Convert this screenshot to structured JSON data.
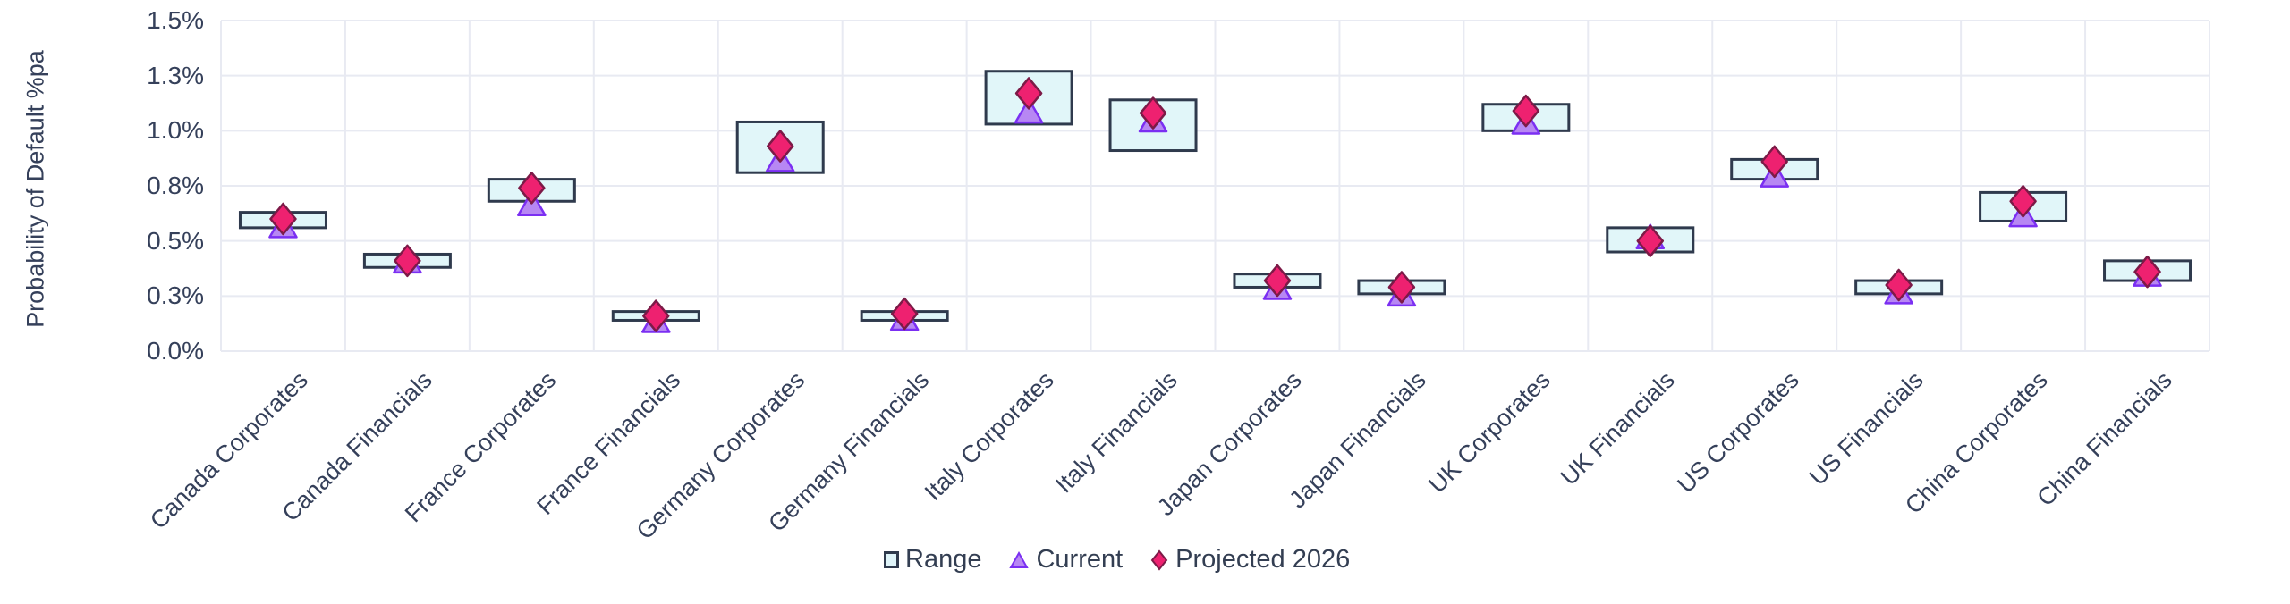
{
  "page": {
    "background": "#ffffff"
  },
  "y_axis": {
    "title": "Probability of Default %pa",
    "tick_labels": [
      "1.5%",
      "1.3%",
      "1.0%",
      "0.8%",
      "0.5%",
      "0.3%",
      "0.0%"
    ],
    "tick_values": [
      1.5,
      1.25,
      1.0,
      0.75,
      0.5,
      0.25,
      0.0
    ],
    "min": 0,
    "max": 1.5
  },
  "legend": {
    "items": [
      {
        "label": "Range",
        "marker": "square",
        "fill": "#dff4f9",
        "stroke": "#2f3a4d"
      },
      {
        "label": "Current",
        "marker": "triangle",
        "fill": "#b787f3",
        "stroke": "#7b2ff2"
      },
      {
        "label": "Projected 2026",
        "marker": "diamond",
        "fill": "#ee2170",
        "stroke": "#7c1a47"
      }
    ]
  },
  "colors": {
    "grid": "#e8eaf2",
    "axis_text": "#35405a",
    "range_fill": "#e1f6f9",
    "range_stroke": "#2f3a4d",
    "current_fill": "#b787f3",
    "current_stroke": "#7b2ff2",
    "projected_fill": "#ee2170",
    "projected_stroke": "#7c1a47"
  },
  "chart_data": {
    "type": "range-bar-with-markers",
    "title": "",
    "xlabel": "",
    "ylabel": "Probability of Default %pa",
    "ylim": [
      0,
      1.5
    ],
    "ytick_step": 0.25,
    "grid": true,
    "legend_position": "bottom",
    "unit": "% per annum",
    "categories": [
      "Canada Corporates",
      "Canada Financials",
      "France Corporates",
      "France Financials",
      "Germany Corporates",
      "Germany Financials",
      "Italy Corporates",
      "Italy Financials",
      "Japan Corporates",
      "Japan Financials",
      "UK Corporates",
      "UK Financials",
      "US Corporates",
      "US Financials",
      "China Corporates",
      "China Financials"
    ],
    "series": [
      {
        "name": "Range",
        "role": "range",
        "low": [
          0.56,
          0.38,
          0.68,
          0.14,
          0.81,
          0.14,
          1.03,
          0.91,
          0.29,
          0.26,
          1.0,
          0.45,
          0.78,
          0.26,
          0.59,
          0.32
        ],
        "high": [
          0.63,
          0.44,
          0.78,
          0.18,
          1.04,
          0.18,
          1.27,
          1.14,
          0.35,
          0.32,
          1.12,
          0.56,
          0.87,
          0.32,
          0.72,
          0.41
        ]
      },
      {
        "name": "Current",
        "role": "marker",
        "shape": "triangle",
        "values": [
          0.57,
          0.41,
          0.67,
          0.14,
          0.87,
          0.15,
          1.09,
          1.05,
          0.29,
          0.26,
          1.04,
          0.52,
          0.8,
          0.27,
          0.62,
          0.35
        ]
      },
      {
        "name": "Projected 2026",
        "role": "marker",
        "shape": "diamond",
        "values": [
          0.6,
          0.41,
          0.74,
          0.16,
          0.93,
          0.17,
          1.17,
          1.08,
          0.32,
          0.29,
          1.09,
          0.5,
          0.86,
          0.3,
          0.68,
          0.36
        ]
      }
    ]
  }
}
